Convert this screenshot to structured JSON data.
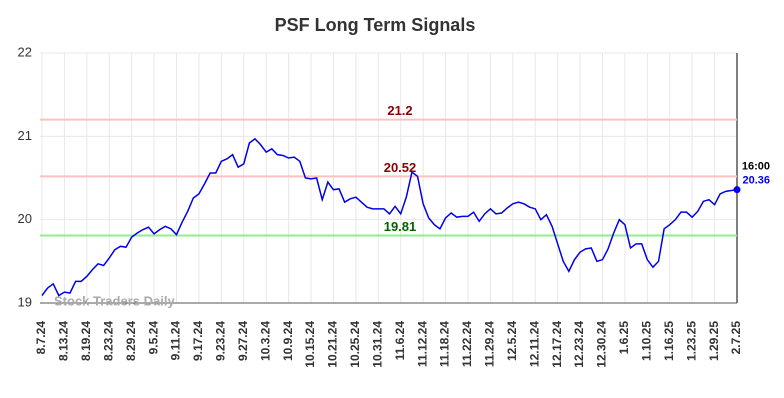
{
  "chart_data": {
    "type": "line",
    "title": "PSF Long Term Signals",
    "categories": [
      "8.7.24",
      null,
      null,
      null,
      "8.13.24",
      null,
      null,
      null,
      "8.19.24",
      null,
      null,
      null,
      "8.23.24",
      null,
      null,
      null,
      "8.29.24",
      null,
      null,
      null,
      "9.5.24",
      null,
      null,
      null,
      "9.11.24",
      null,
      null,
      null,
      "9.17.24",
      null,
      null,
      null,
      "9.23.24",
      null,
      null,
      null,
      "9.27.24",
      null,
      null,
      null,
      "10.3.24",
      null,
      null,
      null,
      "10.9.24",
      null,
      null,
      null,
      "10.15.24",
      null,
      null,
      null,
      "10.21.24",
      null,
      null,
      null,
      "10.25.24",
      null,
      null,
      null,
      "10.31.24",
      null,
      null,
      null,
      "11.6.24",
      null,
      null,
      null,
      "11.12.24",
      null,
      null,
      null,
      "11.18.24",
      null,
      null,
      null,
      "11.22.24",
      null,
      null,
      null,
      "11.29.24",
      null,
      null,
      null,
      "12.5.24",
      null,
      null,
      null,
      "12.11.24",
      null,
      null,
      null,
      "12.17.24",
      null,
      null,
      null,
      "12.23.24",
      null,
      null,
      null,
      "12.30.24",
      null,
      null,
      null,
      "1.6.25",
      null,
      null,
      null,
      "1.10.25",
      null,
      null,
      null,
      "1.16.25",
      null,
      null,
      null,
      "1.23.25",
      null,
      null,
      null,
      "1.29.25",
      null,
      null,
      null,
      "2.7.25"
    ],
    "series": [
      {
        "name": "PSF",
        "color": "#0000ee",
        "values": [
          19.09,
          19.18,
          19.23,
          19.09,
          19.13,
          19.12,
          19.26,
          19.26,
          19.32,
          19.4,
          19.47,
          19.45,
          19.54,
          19.64,
          19.68,
          19.67,
          19.79,
          19.84,
          19.88,
          19.91,
          19.83,
          19.88,
          19.92,
          19.89,
          19.82,
          19.97,
          20.1,
          20.26,
          20.31,
          20.43,
          20.56,
          20.56,
          20.7,
          20.73,
          20.78,
          20.63,
          20.67,
          20.92,
          20.97,
          20.9,
          20.81,
          20.85,
          20.78,
          20.77,
          20.74,
          20.75,
          20.7,
          20.5,
          20.49,
          20.5,
          20.24,
          20.45,
          20.36,
          20.37,
          20.21,
          20.25,
          20.27,
          20.21,
          20.15,
          20.13,
          20.13,
          20.13,
          20.07,
          20.16,
          20.07,
          20.27,
          20.57,
          20.52,
          20.19,
          20.02,
          19.94,
          19.89,
          20.02,
          20.08,
          20.03,
          20.04,
          20.04,
          20.09,
          19.98,
          20.07,
          20.13,
          20.07,
          20.08,
          20.14,
          20.19,
          20.21,
          20.19,
          20.15,
          20.13,
          20.0,
          20.06,
          19.92,
          19.71,
          19.5,
          19.38,
          19.52,
          19.61,
          19.65,
          19.66,
          19.5,
          19.52,
          19.65,
          19.84,
          20.0,
          19.94,
          19.66,
          19.71,
          19.71,
          19.52,
          19.43,
          19.5,
          19.89,
          19.94,
          20.0,
          20.09,
          20.09,
          20.03,
          20.1,
          20.22,
          20.24,
          20.18,
          20.31,
          20.34,
          20.35,
          20.36
        ]
      }
    ],
    "ylim": [
      19,
      22
    ],
    "yticks": [
      19,
      20,
      21,
      22
    ],
    "grid": true,
    "hlines": [
      {
        "value": 21.2,
        "color": "#ffc0c0",
        "label_color": "#8b0000"
      },
      {
        "value": 20.52,
        "color": "#ffc0c0",
        "label_color": "#8b0000"
      },
      {
        "value": 19.81,
        "color": "#90ee90",
        "label_color": "#006400"
      }
    ],
    "last_time": "16:00",
    "watermark": "Stock Traders Daily"
  }
}
